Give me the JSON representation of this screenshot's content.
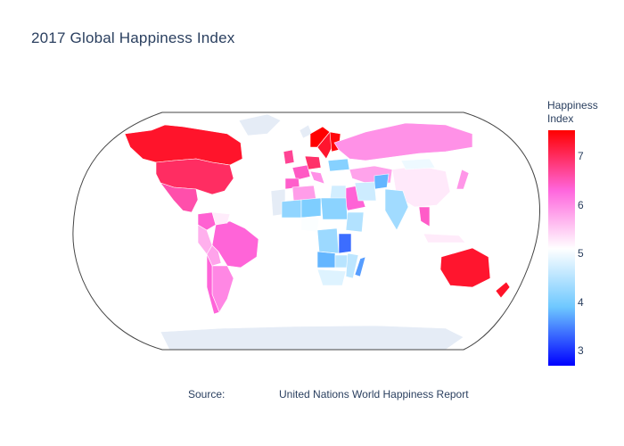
{
  "chart_data": {
    "type": "choropleth",
    "title": "2017 Global Happiness Index",
    "projection": "robinson",
    "colorbar": {
      "title_line1": "Happiness",
      "title_line2": "Index",
      "ticks": [
        "7",
        "6",
        "5",
        "4",
        "3"
      ],
      "range": [
        2.69,
        7.54
      ],
      "colorscale": [
        {
          "value": 2.69,
          "color": "#0000ff"
        },
        {
          "value": 3.9,
          "color": "#6ec8ff"
        },
        {
          "value": 5.1,
          "color": "#ffffff"
        },
        {
          "value": 6.3,
          "color": "#ff66dd"
        },
        {
          "value": 7.54,
          "color": "#ff0000"
        }
      ]
    },
    "land_color": "#e5ecf6",
    "countries": [
      {
        "name": "Canada",
        "value": 7.3
      },
      {
        "name": "United States",
        "value": 6.99
      },
      {
        "name": "Mexico",
        "value": 6.58
      },
      {
        "name": "Brazil",
        "value": 6.33
      },
      {
        "name": "Argentina",
        "value": 6.04
      },
      {
        "name": "Chile",
        "value": 6.32
      },
      {
        "name": "Peru",
        "value": 5.72
      },
      {
        "name": "Colombia",
        "value": 6.36
      },
      {
        "name": "Venezuela",
        "value": 5.25
      },
      {
        "name": "Bolivia",
        "value": 5.82
      },
      {
        "name": "Norway",
        "value": 7.54
      },
      {
        "name": "Sweden",
        "value": 7.28
      },
      {
        "name": "Finland",
        "value": 7.47
      },
      {
        "name": "United Kingdom",
        "value": 6.71
      },
      {
        "name": "France",
        "value": 6.44
      },
      {
        "name": "Germany",
        "value": 6.95
      },
      {
        "name": "Spain",
        "value": 6.4
      },
      {
        "name": "Italy",
        "value": 5.96
      },
      {
        "name": "Ukraine",
        "value": 4.1
      },
      {
        "name": "Russia",
        "value": 5.96
      },
      {
        "name": "Kazakhstan",
        "value": 5.82
      },
      {
        "name": "China",
        "value": 5.27
      },
      {
        "name": "Mongolia",
        "value": 4.96
      },
      {
        "name": "India",
        "value": 4.32
      },
      {
        "name": "Afghanistan",
        "value": 3.79
      },
      {
        "name": "Saudi Arabia",
        "value": 6.34
      },
      {
        "name": "Iran",
        "value": 4.69
      },
      {
        "name": "Egypt",
        "value": 4.73
      },
      {
        "name": "Algeria",
        "value": 5.87
      },
      {
        "name": "Mali",
        "value": 4.19
      },
      {
        "name": "Niger",
        "value": 4.03
      },
      {
        "name": "Nigeria",
        "value": 5.07
      },
      {
        "name": "Sudan",
        "value": 4.14
      },
      {
        "name": "Ethiopia",
        "value": 4.46
      },
      {
        "name": "DR Congo",
        "value": 4.28
      },
      {
        "name": "Tanzania",
        "value": 3.35
      },
      {
        "name": "Angola",
        "value": 3.79
      },
      {
        "name": "Zambia",
        "value": 4.51
      },
      {
        "name": "Mozambique",
        "value": 4.55
      },
      {
        "name": "South Africa",
        "value": 4.83
      },
      {
        "name": "Madagascar",
        "value": 3.64
      },
      {
        "name": "Thailand",
        "value": 6.42
      },
      {
        "name": "Indonesia",
        "value": 5.26
      },
      {
        "name": "Japan",
        "value": 5.92
      },
      {
        "name": "Australia",
        "value": 7.28
      },
      {
        "name": "New Zealand",
        "value": 7.31
      }
    ],
    "source_label": "Source:",
    "source_value": "United Nations World Happiness Report"
  }
}
